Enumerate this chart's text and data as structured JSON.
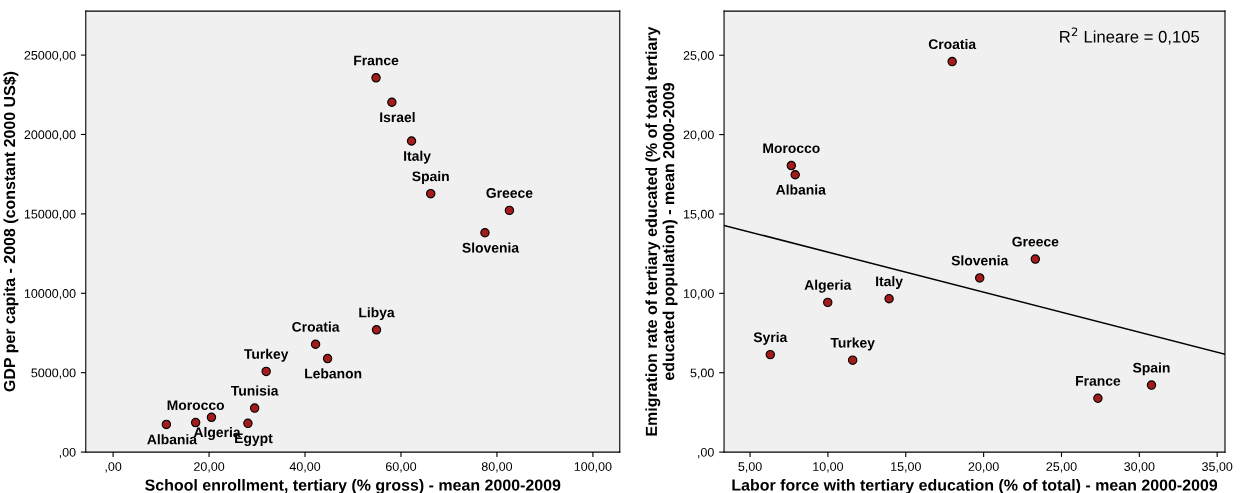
{
  "chart_data": [
    {
      "type": "scatter",
      "xlabel": "School enrollment, tertiary (% gross) - mean 2000-2009",
      "ylabel": "GDP per capita - 2008 (constant 2000 US$)",
      "xlim": [
        -5.7,
        105.6
      ],
      "ylim": [
        0,
        27770
      ],
      "xticks": [
        {
          "value": 0,
          "label": ",00"
        },
        {
          "value": 20,
          "label": "20,00"
        },
        {
          "value": 40,
          "label": "40,00"
        },
        {
          "value": 60,
          "label": "60,00"
        },
        {
          "value": 80,
          "label": "80,00"
        },
        {
          "value": 100,
          "label": "100,00"
        }
      ],
      "yticks": [
        {
          "value": 0,
          "label": ",00"
        },
        {
          "value": 5000,
          "label": "5000,00"
        },
        {
          "value": 10000,
          "label": "10000,00"
        },
        {
          "value": 15000,
          "label": "15000,00"
        },
        {
          "value": 20000,
          "label": "20000,00"
        },
        {
          "value": 25000,
          "label": "25000,00"
        }
      ],
      "grid": false,
      "series": [
        {
          "marker": "circle",
          "color": "#a31b1b",
          "x": [
            54.8,
            58.1,
            62.2,
            66.2,
            82.6,
            77.5,
            54.9,
            42.2,
            44.7,
            31.9,
            29.5,
            20.5,
            28.1,
            17.2,
            11.1
          ],
          "values": [
            23570,
            22030,
            19590,
            16270,
            15220,
            13810,
            7700,
            6790,
            5890,
            5080,
            2770,
            2190,
            1810,
            1860,
            1740
          ]
        }
      ],
      "annotations": [
        {
          "text": "France",
          "x": 54.8,
          "y": 23570
        },
        {
          "text": "Israel",
          "x": 58.1,
          "y": 22030
        },
        {
          "text": "Italy",
          "x": 62.2,
          "y": 19590
        },
        {
          "text": "Spain",
          "x": 66.2,
          "y": 16270
        },
        {
          "text": "Greece",
          "x": 82.6,
          "y": 15220
        },
        {
          "text": "Slovenia",
          "x": 77.5,
          "y": 13810
        },
        {
          "text": "Libya",
          "x": 54.9,
          "y": 7700
        },
        {
          "text": "Croatia",
          "x": 42.2,
          "y": 6790
        },
        {
          "text": "Lebanon",
          "x": 44.7,
          "y": 5890
        },
        {
          "text": "Turkey",
          "x": 31.9,
          "y": 5080
        },
        {
          "text": "Tunisia",
          "x": 29.5,
          "y": 2770
        },
        {
          "text": "Algeria",
          "x": 20.5,
          "y": 2190
        },
        {
          "text": "Egypt",
          "x": 28.1,
          "y": 1810
        },
        {
          "text": "Morocco",
          "x": 17.2,
          "y": 1860
        },
        {
          "text": "Albania",
          "x": 11.1,
          "y": 1740
        }
      ]
    },
    {
      "type": "scatter",
      "xlabel": "Labor force with tertiary education (% of total) - mean 2000-2009",
      "ylabel": "Emigration rate of tertiary educated (% of total tertiary\neducated population) - mean 2000-2009",
      "xlim": [
        3.33,
        35.5
      ],
      "ylim": [
        0,
        27.78
      ],
      "xticks": [
        {
          "value": 5,
          "label": "5,00"
        },
        {
          "value": 10,
          "label": "10,00"
        },
        {
          "value": 15,
          "label": "15,00"
        },
        {
          "value": 20,
          "label": "20,00"
        },
        {
          "value": 25,
          "label": "25,00"
        },
        {
          "value": 30,
          "label": "30,00"
        },
        {
          "value": 35,
          "label": "35,00"
        }
      ],
      "yticks": [
        {
          "value": 0,
          "label": ",00"
        },
        {
          "value": 5,
          "label": "5,00"
        },
        {
          "value": 10,
          "label": "10,00"
        },
        {
          "value": 15,
          "label": "15,00"
        },
        {
          "value": 20,
          "label": "20,00"
        },
        {
          "value": 25,
          "label": "25,00"
        }
      ],
      "grid": false,
      "series": [
        {
          "marker": "circle",
          "color": "#a31b1b",
          "x": [
            17.98,
            7.65,
            7.9,
            23.32,
            19.75,
            9.99,
            13.93,
            6.3,
            11.59,
            27.34,
            30.78
          ],
          "values": [
            24.6,
            18.05,
            17.47,
            12.16,
            10.97,
            9.43,
            9.66,
            6.14,
            5.79,
            3.39,
            4.22
          ]
        },
        {
          "type": "line",
          "color": "#000000",
          "x": [
            3.33,
            35.5
          ],
          "values": [
            14.28,
            6.16
          ]
        }
      ],
      "annotations": [
        "R$^{2}$ Lineare = 0,105",
        {
          "text": "Croatia",
          "x": 17.98,
          "y": 24.6
        },
        {
          "text": "Morocco",
          "x": 7.65,
          "y": 18.05
        },
        {
          "text": "Albania",
          "x": 7.9,
          "y": 17.47
        },
        {
          "text": "Greece",
          "x": 23.32,
          "y": 12.16
        },
        {
          "text": "Slovenia",
          "x": 19.75,
          "y": 10.97
        },
        {
          "text": "Algeria",
          "x": 9.99,
          "y": 9.43
        },
        {
          "text": "Italy",
          "x": 13.93,
          "y": 9.66
        },
        {
          "text": "Syria",
          "x": 6.3,
          "y": 6.14
        },
        {
          "text": "Turkey",
          "x": 11.59,
          "y": 5.79
        },
        {
          "text": "France",
          "x": 27.34,
          "y": 3.39
        },
        {
          "text": "Spain",
          "x": 30.78,
          "y": 4.22
        }
      ]
    }
  ]
}
